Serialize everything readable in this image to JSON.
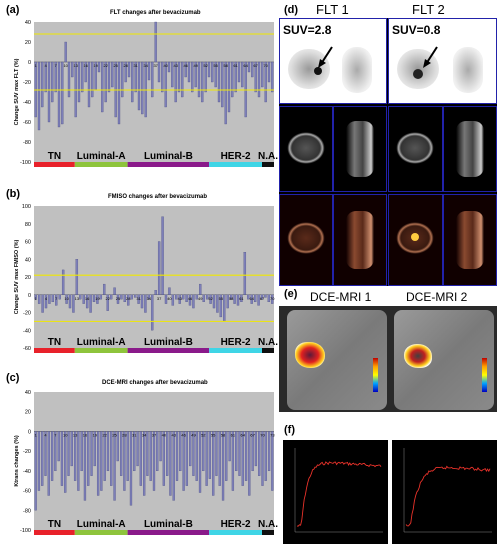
{
  "panels": {
    "a": {
      "label": "(a)",
      "title": "FLT changes after bevacizumab"
    },
    "b": {
      "label": "(b)",
      "title": "FMISO changes after bevacizumab"
    },
    "c": {
      "label": "(c)",
      "title": "DCE-MRI changes after bevacizumab"
    },
    "d": {
      "label": "(d)",
      "flt1": "FLT 1",
      "flt2": "FLT 2",
      "suv1": "SUV=2.8",
      "suv2": "SUV=0.8"
    },
    "e": {
      "label": "(e)",
      "mri1": "DCE-MRI 1",
      "mri2": "DCE-MRI 2"
    },
    "f": {
      "label": "(f)"
    }
  },
  "colors": {
    "plot_bg": "#c0c0c0",
    "bar": "#7d7fb8",
    "threshold": "#f0e800",
    "TN": "#e8212a",
    "Luminal-A": "#8ec43c",
    "Luminal-B": "#8a1a8a",
    "HER-2": "#3fd5e6",
    "N.A.": "#101010",
    "curve": "#e8322a"
  },
  "subtypes": [
    {
      "name": "TN",
      "start": 0,
      "end": 0.17
    },
    {
      "name": "Luminal-A",
      "start": 0.17,
      "end": 0.39
    },
    {
      "name": "Luminal-B",
      "start": 0.39,
      "end": 0.73
    },
    {
      "name": "HER-2",
      "start": 0.73,
      "end": 0.95
    },
    {
      "name": "N.A.",
      "start": 0.95,
      "end": 1
    }
  ],
  "chart_data": [
    {
      "type": "bar",
      "title": "FLT changes after bevacizumab",
      "ylabel": "Change SUV max FLT (%)",
      "ylim": [
        -100,
        40
      ],
      "yticks": [
        -100,
        -80,
        -60,
        -40,
        -20,
        0,
        20,
        40
      ],
      "thresholds": [
        28,
        -28
      ],
      "xticks": [
        "1",
        "4",
        "7",
        "10",
        "13",
        "16",
        "19",
        "22",
        "25",
        "28",
        "31",
        "34",
        "37",
        "40",
        "43",
        "46",
        "49",
        "52",
        "55",
        "58",
        "61",
        "64",
        "67",
        "70"
      ],
      "values": [
        -55,
        -68,
        -45,
        -30,
        -60,
        -40,
        -30,
        -65,
        -62,
        20,
        -35,
        -15,
        -55,
        -40,
        -30,
        -20,
        -45,
        -35,
        -28,
        -10,
        -50,
        -40,
        -30,
        -25,
        -55,
        -62,
        -35,
        -20,
        -15,
        -40,
        -30,
        -48,
        -52,
        -55,
        -18,
        -35,
        40,
        -20,
        -30,
        -45,
        -10,
        -25,
        -40,
        -30,
        -35,
        -15,
        -20,
        -30,
        -25,
        -35,
        -40,
        -30,
        -15,
        -20,
        -25,
        -40,
        -45,
        -62,
        -50,
        -35,
        -30,
        -20,
        -25,
        -55,
        -10,
        -15,
        -30,
        -35,
        -25,
        -40,
        -20,
        -30
      ]
    },
    {
      "type": "bar",
      "title": "FMISO changes after bevacizumab",
      "ylabel": "Change SUV max FMISO (%)",
      "ylim": [
        -60,
        100
      ],
      "yticks": [
        -60,
        -40,
        -20,
        0,
        20,
        40,
        60,
        80,
        100
      ],
      "thresholds": [
        22,
        -30
      ],
      "xticks": [
        "1",
        "4",
        "7",
        "10",
        "13",
        "16",
        "19",
        "22",
        "25",
        "28",
        "31",
        "34",
        "37",
        "40",
        "43",
        "46",
        "49",
        "52",
        "55",
        "58",
        "61",
        "64",
        "67",
        "70"
      ],
      "values": [
        -5,
        -10,
        -20,
        -15,
        -10,
        -8,
        -12,
        -5,
        28,
        -10,
        -15,
        -20,
        40,
        -5,
        -10,
        -15,
        -20,
        -8,
        -10,
        -5,
        12,
        -18,
        -5,
        8,
        -10,
        -5,
        -8,
        -12,
        -5,
        -3,
        -10,
        -15,
        -20,
        -5,
        -40,
        5,
        60,
        88,
        -10,
        8,
        -12,
        -5,
        -10,
        -5,
        -8,
        -12,
        -15,
        -5,
        12,
        -8,
        -5,
        -10,
        -15,
        -20,
        -25,
        -30,
        -15,
        -5,
        -10,
        -12,
        -8,
        48,
        -5,
        -10,
        -8,
        -12,
        -5,
        -3,
        -8,
        -10
      ]
    },
    {
      "type": "bar",
      "title": "DCE-MRI changes after bevacizumab",
      "ylabel": "Ktrans changes (%)",
      "ylim": [
        -100,
        40
      ],
      "yticks": [
        -100,
        -80,
        -60,
        -40,
        -20,
        0,
        20,
        40
      ],
      "thresholds": [],
      "xticks": [
        "1",
        "4",
        "7",
        "10",
        "13",
        "16",
        "19",
        "22",
        "25",
        "28",
        "31",
        "34",
        "37",
        "40",
        "43",
        "46",
        "49",
        "52",
        "55",
        "58",
        "61",
        "64",
        "67",
        "70",
        "73"
      ],
      "values": [
        -80,
        -60,
        -55,
        -45,
        -65,
        -50,
        -40,
        -30,
        -55,
        -62,
        -45,
        -35,
        -50,
        -60,
        -40,
        -70,
        -55,
        -45,
        -35,
        -65,
        -60,
        -50,
        -40,
        -55,
        -70,
        -30,
        -45,
        -60,
        -50,
        -75,
        -40,
        -35,
        -55,
        -65,
        -45,
        -50,
        -60,
        -40,
        -30,
        -55,
        -45,
        -65,
        -70,
        -50,
        -40,
        -60,
        -55,
        -35,
        -45,
        -50,
        -62,
        -40,
        -55,
        -48,
        -65,
        -45,
        -55,
        -70,
        -50,
        -30,
        -60,
        -40,
        -45,
        -55,
        -50,
        -65,
        -40,
        -35,
        -45,
        -55,
        -50,
        -40,
        -60
      ]
    }
  ]
}
